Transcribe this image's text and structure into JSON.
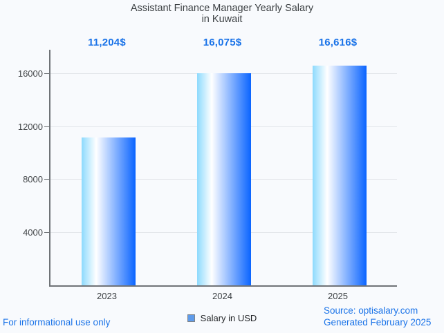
{
  "title": {
    "line1": "Assistant Finance Manager Yearly Salary",
    "line2": "in Kuwait"
  },
  "legend": {
    "label": "Salary in USD"
  },
  "footer": {
    "left": "For informational use only",
    "source": "Source: optisalary.com",
    "generated": "Generated February 2025"
  },
  "colors": {
    "background": "#f8fafd",
    "accent_blue": "#1a73e8",
    "title_text": "#3c4043",
    "axis_line": "#6f7377",
    "gridline": "#e3e6ea",
    "legend_square_fill": "#5f9bea",
    "bar_gradient_left": "#8ddafd",
    "bar_gradient_mid": "#ffffff",
    "bar_gradient_right": "#0a64ff"
  },
  "chart_data": {
    "type": "bar",
    "title": "Assistant Finance Manager Yearly Salary in Kuwait",
    "categories": [
      "2023",
      "2024",
      "2025"
    ],
    "values": [
      11204,
      16075,
      16616
    ],
    "value_labels": [
      "11,204$",
      "16,075$",
      "16,616$"
    ],
    "series": [
      {
        "name": "Salary in USD",
        "values": [
          11204,
          16075,
          16616
        ]
      }
    ],
    "xlabel": "",
    "ylabel": "",
    "ylim": [
      0,
      17830
    ],
    "yticks": [
      4000,
      8000,
      12000,
      16000
    ],
    "grid": true,
    "legend_position": "bottom",
    "value_label_position": "above-plot"
  }
}
